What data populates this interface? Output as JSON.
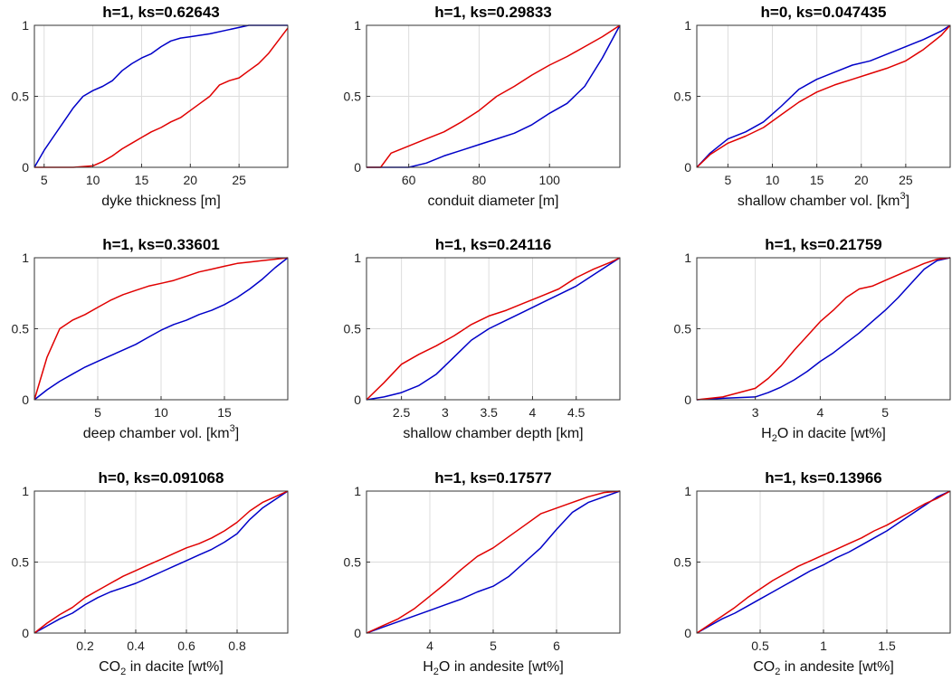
{
  "colors": {
    "series_a": "#0000c8",
    "series_b": "#e00000",
    "grid": "#dcdcdc"
  },
  "chart_data": [
    {
      "type": "line",
      "title": "h=1, ks=0.62643",
      "xlabel": {
        "pre": "dyke thickness [m]",
        "script": "",
        "script_type": "",
        "post": ""
      },
      "xlim": [
        4,
        30
      ],
      "ylim": [
        0,
        1
      ],
      "xticks": [
        5,
        10,
        15,
        20,
        25
      ],
      "xtick_labels": [
        "5",
        "10",
        "15",
        "20",
        "25"
      ],
      "yticks": [
        0,
        0.5,
        1
      ],
      "ytick_labels": [
        "0",
        "0.5",
        "1"
      ],
      "series": [
        {
          "name": "blue",
          "x": [
            4,
            5,
            6,
            7,
            8,
            9,
            10,
            11,
            12,
            13,
            14,
            15,
            16,
            17,
            18,
            19,
            20,
            22,
            24,
            26,
            28,
            30
          ],
          "y": [
            0.0,
            0.12,
            0.22,
            0.32,
            0.42,
            0.5,
            0.54,
            0.57,
            0.61,
            0.68,
            0.73,
            0.77,
            0.8,
            0.85,
            0.89,
            0.91,
            0.92,
            0.94,
            0.97,
            1.0,
            1.0,
            1.0
          ]
        },
        {
          "name": "red",
          "x": [
            4,
            6.5,
            8,
            10,
            11,
            12,
            13,
            14,
            15,
            16,
            17,
            18,
            19,
            20,
            21,
            22,
            23,
            24,
            25,
            26,
            27,
            28,
            29,
            30
          ],
          "y": [
            0.0,
            0.0,
            0.0,
            0.01,
            0.04,
            0.08,
            0.13,
            0.17,
            0.21,
            0.25,
            0.28,
            0.32,
            0.35,
            0.4,
            0.45,
            0.5,
            0.58,
            0.61,
            0.63,
            0.68,
            0.73,
            0.8,
            0.89,
            0.98
          ]
        }
      ]
    },
    {
      "type": "line",
      "title": "h=1, ks=0.29833",
      "xlabel": {
        "pre": "conduit diameter [m]",
        "script": "",
        "script_type": "",
        "post": ""
      },
      "xlim": [
        48,
        120
      ],
      "ylim": [
        0,
        1
      ],
      "xticks": [
        60,
        80,
        100
      ],
      "xtick_labels": [
        "60",
        "80",
        "100"
      ],
      "yticks": [
        0,
        0.5,
        1
      ],
      "ytick_labels": [
        "0",
        "0.5",
        "1"
      ],
      "series": [
        {
          "name": "blue",
          "x": [
            48,
            60,
            65,
            70,
            75,
            80,
            85,
            90,
            95,
            100,
            105,
            110,
            115,
            120
          ],
          "y": [
            0.0,
            0.0,
            0.03,
            0.08,
            0.12,
            0.16,
            0.2,
            0.24,
            0.3,
            0.38,
            0.45,
            0.57,
            0.77,
            1.0
          ]
        },
        {
          "name": "red",
          "x": [
            48,
            52,
            55,
            60,
            65,
            70,
            75,
            80,
            85,
            90,
            95,
            100,
            105,
            110,
            115,
            120
          ],
          "y": [
            0.0,
            0.0,
            0.1,
            0.15,
            0.2,
            0.25,
            0.32,
            0.4,
            0.5,
            0.57,
            0.65,
            0.72,
            0.78,
            0.85,
            0.92,
            1.0
          ]
        }
      ]
    },
    {
      "type": "line",
      "title": "h=0, ks=0.047435",
      "xlabel": {
        "pre": "shallow chamber vol. [km",
        "script": "3",
        "script_type": "sup",
        "post": "]"
      },
      "xlim": [
        1.5,
        30
      ],
      "ylim": [
        0,
        1
      ],
      "xticks": [
        5,
        10,
        15,
        20,
        25
      ],
      "xtick_labels": [
        "5",
        "10",
        "15",
        "20",
        "25"
      ],
      "yticks": [
        0,
        0.5,
        1
      ],
      "ytick_labels": [
        "0",
        "0.5",
        "1"
      ],
      "series": [
        {
          "name": "blue",
          "x": [
            1.5,
            3,
            5,
            7,
            9,
            11,
            13,
            15,
            17,
            19,
            21,
            23,
            25,
            27,
            29,
            30
          ],
          "y": [
            0.0,
            0.1,
            0.2,
            0.25,
            0.32,
            0.43,
            0.55,
            0.62,
            0.67,
            0.72,
            0.75,
            0.8,
            0.85,
            0.9,
            0.96,
            1.0
          ]
        },
        {
          "name": "red",
          "x": [
            1.5,
            3,
            5,
            7,
            9,
            11,
            13,
            15,
            17,
            19,
            21,
            23,
            25,
            27,
            29,
            30
          ],
          "y": [
            0.0,
            0.09,
            0.17,
            0.22,
            0.28,
            0.37,
            0.46,
            0.53,
            0.58,
            0.62,
            0.66,
            0.7,
            0.75,
            0.83,
            0.93,
            1.0
          ]
        }
      ]
    },
    {
      "type": "line",
      "title": "h=1, ks=0.33601",
      "xlabel": {
        "pre": "deep chamber vol. [km",
        "script": "3",
        "script_type": "sup",
        "post": "]"
      },
      "xlim": [
        0,
        20
      ],
      "ylim": [
        0,
        1
      ],
      "xticks": [
        5,
        10,
        15
      ],
      "xtick_labels": [
        "5",
        "10",
        "15"
      ],
      "yticks": [
        0,
        0.5,
        1
      ],
      "ytick_labels": [
        "0",
        "0.5",
        "1"
      ],
      "series": [
        {
          "name": "blue",
          "x": [
            0,
            1,
            2,
            3,
            4,
            5,
            6,
            7,
            8,
            9,
            10,
            11,
            12,
            13,
            14,
            15,
            16,
            17,
            18,
            19,
            20
          ],
          "y": [
            0.0,
            0.07,
            0.13,
            0.18,
            0.23,
            0.27,
            0.31,
            0.35,
            0.39,
            0.44,
            0.49,
            0.53,
            0.56,
            0.6,
            0.63,
            0.67,
            0.72,
            0.78,
            0.85,
            0.93,
            1.0
          ]
        },
        {
          "name": "red",
          "x": [
            0,
            0.5,
            1,
            1.5,
            2,
            3,
            4,
            5,
            6,
            7,
            8,
            9,
            10,
            11,
            12,
            13,
            14,
            15,
            16,
            17,
            18,
            19,
            20
          ],
          "y": [
            0.0,
            0.15,
            0.3,
            0.4,
            0.5,
            0.56,
            0.6,
            0.65,
            0.7,
            0.74,
            0.77,
            0.8,
            0.82,
            0.84,
            0.87,
            0.9,
            0.92,
            0.94,
            0.96,
            0.97,
            0.98,
            0.99,
            1.0
          ]
        }
      ]
    },
    {
      "type": "line",
      "title": "h=1, ks=0.24116",
      "xlabel": {
        "pre": "shallow chamber depth [km]",
        "script": "",
        "script_type": "",
        "post": ""
      },
      "xlim": [
        2.1,
        5.0
      ],
      "ylim": [
        0,
        1
      ],
      "xticks": [
        2.5,
        3,
        3.5,
        4,
        4.5
      ],
      "xtick_labels": [
        "2.5",
        "3",
        "3.5",
        "4",
        "4.5"
      ],
      "yticks": [
        0,
        0.5,
        1
      ],
      "ytick_labels": [
        "0",
        "0.5",
        "1"
      ],
      "series": [
        {
          "name": "blue",
          "x": [
            2.1,
            2.3,
            2.5,
            2.7,
            2.9,
            3.1,
            3.3,
            3.5,
            3.7,
            3.9,
            4.1,
            4.3,
            4.5,
            4.7,
            4.9,
            5.0
          ],
          "y": [
            0.0,
            0.02,
            0.05,
            0.1,
            0.18,
            0.3,
            0.42,
            0.5,
            0.56,
            0.62,
            0.68,
            0.74,
            0.8,
            0.88,
            0.96,
            1.0
          ]
        },
        {
          "name": "red",
          "x": [
            2.1,
            2.3,
            2.5,
            2.7,
            2.9,
            3.1,
            3.3,
            3.5,
            3.7,
            3.9,
            4.1,
            4.3,
            4.5,
            4.7,
            4.9,
            5.0
          ],
          "y": [
            0.0,
            0.12,
            0.25,
            0.32,
            0.38,
            0.45,
            0.53,
            0.59,
            0.63,
            0.68,
            0.73,
            0.78,
            0.86,
            0.92,
            0.97,
            1.0
          ]
        }
      ]
    },
    {
      "type": "line",
      "title": "h=1, ks=0.21759",
      "xlabel": {
        "pre": "H",
        "script": "2",
        "script_type": "sub",
        "post": "O in dacite [wt%]"
      },
      "xlim": [
        2.1,
        6.0
      ],
      "ylim": [
        0,
        1
      ],
      "xticks": [
        3,
        4,
        5
      ],
      "xtick_labels": [
        "3",
        "4",
        "5"
      ],
      "yticks": [
        0,
        0.5,
        1
      ],
      "ytick_labels": [
        "0",
        "0.5",
        "1"
      ],
      "series": [
        {
          "name": "blue",
          "x": [
            2.1,
            2.5,
            3.0,
            3.2,
            3.4,
            3.6,
            3.8,
            4.0,
            4.2,
            4.4,
            4.6,
            4.8,
            5.0,
            5.2,
            5.4,
            5.6,
            5.8,
            6.0
          ],
          "y": [
            0.0,
            0.01,
            0.02,
            0.05,
            0.09,
            0.14,
            0.2,
            0.27,
            0.33,
            0.4,
            0.47,
            0.55,
            0.63,
            0.72,
            0.82,
            0.92,
            0.98,
            1.0
          ]
        },
        {
          "name": "red",
          "x": [
            2.1,
            2.5,
            3.0,
            3.2,
            3.4,
            3.6,
            3.8,
            4.0,
            4.2,
            4.4,
            4.6,
            4.8,
            5.0,
            5.2,
            5.4,
            5.6,
            5.8,
            6.0
          ],
          "y": [
            0.0,
            0.02,
            0.08,
            0.15,
            0.24,
            0.35,
            0.45,
            0.55,
            0.63,
            0.72,
            0.78,
            0.8,
            0.84,
            0.88,
            0.92,
            0.96,
            0.99,
            1.0
          ]
        }
      ]
    },
    {
      "type": "line",
      "title": "h=0, ks=0.091068",
      "xlabel": {
        "pre": "CO",
        "script": "2",
        "script_type": "sub",
        "post": " in dacite [wt%]"
      },
      "xlim": [
        0,
        1.0
      ],
      "ylim": [
        0,
        1
      ],
      "xticks": [
        0.2,
        0.4,
        0.6,
        0.8
      ],
      "xtick_labels": [
        "0.2",
        "0.4",
        "0.6",
        "0.8"
      ],
      "yticks": [
        0,
        0.5,
        1
      ],
      "ytick_labels": [
        "0",
        "0.5",
        "1"
      ],
      "series": [
        {
          "name": "blue",
          "x": [
            0,
            0.05,
            0.1,
            0.15,
            0.2,
            0.25,
            0.3,
            0.35,
            0.4,
            0.45,
            0.5,
            0.55,
            0.6,
            0.65,
            0.7,
            0.75,
            0.8,
            0.85,
            0.9,
            0.95,
            1.0
          ],
          "y": [
            0.0,
            0.05,
            0.1,
            0.14,
            0.2,
            0.25,
            0.29,
            0.32,
            0.35,
            0.39,
            0.43,
            0.47,
            0.51,
            0.55,
            0.59,
            0.64,
            0.7,
            0.8,
            0.88,
            0.94,
            1.0
          ]
        },
        {
          "name": "red",
          "x": [
            0,
            0.05,
            0.1,
            0.15,
            0.2,
            0.25,
            0.3,
            0.35,
            0.4,
            0.45,
            0.5,
            0.55,
            0.6,
            0.65,
            0.7,
            0.75,
            0.8,
            0.85,
            0.9,
            0.95,
            1.0
          ],
          "y": [
            0.0,
            0.07,
            0.13,
            0.18,
            0.25,
            0.3,
            0.35,
            0.4,
            0.44,
            0.48,
            0.52,
            0.56,
            0.6,
            0.63,
            0.67,
            0.72,
            0.78,
            0.86,
            0.92,
            0.96,
            1.0
          ]
        }
      ]
    },
    {
      "type": "line",
      "title": "h=1, ks=0.17577",
      "xlabel": {
        "pre": "H",
        "script": "2",
        "script_type": "sub",
        "post": "O in andesite [wt%]"
      },
      "xlim": [
        3.0,
        7.0
      ],
      "ylim": [
        0,
        1
      ],
      "xticks": [
        4,
        5,
        6
      ],
      "xtick_labels": [
        "4",
        "5",
        "6"
      ],
      "yticks": [
        0,
        0.5,
        1
      ],
      "ytick_labels": [
        "0",
        "0.5",
        "1"
      ],
      "series": [
        {
          "name": "blue",
          "x": [
            3.0,
            3.25,
            3.5,
            3.75,
            4.0,
            4.25,
            4.5,
            4.75,
            5.0,
            5.25,
            5.5,
            5.75,
            6.0,
            6.25,
            6.5,
            6.75,
            7.0
          ],
          "y": [
            0.0,
            0.04,
            0.08,
            0.12,
            0.16,
            0.2,
            0.24,
            0.29,
            0.33,
            0.4,
            0.5,
            0.6,
            0.73,
            0.85,
            0.92,
            0.96,
            1.0
          ]
        },
        {
          "name": "red",
          "x": [
            3.0,
            3.25,
            3.5,
            3.75,
            4.0,
            4.25,
            4.5,
            4.75,
            5.0,
            5.25,
            5.5,
            5.75,
            6.0,
            6.25,
            6.5,
            6.75,
            7.0
          ],
          "y": [
            0.0,
            0.05,
            0.1,
            0.17,
            0.26,
            0.35,
            0.45,
            0.54,
            0.6,
            0.68,
            0.76,
            0.84,
            0.88,
            0.92,
            0.96,
            0.99,
            1.0
          ]
        }
      ]
    },
    {
      "type": "line",
      "title": "h=1, ks=0.13966",
      "xlabel": {
        "pre": "CO",
        "script": "2",
        "script_type": "sub",
        "post": " in andesite [wt%]"
      },
      "xlim": [
        0,
        2.0
      ],
      "ylim": [
        0,
        1
      ],
      "xticks": [
        0.5,
        1,
        1.5
      ],
      "xtick_labels": [
        "0.5",
        "1",
        "1.5"
      ],
      "yticks": [
        0,
        0.5,
        1
      ],
      "ytick_labels": [
        "0",
        "0.5",
        "1"
      ],
      "series": [
        {
          "name": "blue",
          "x": [
            0,
            0.1,
            0.2,
            0.3,
            0.4,
            0.5,
            0.6,
            0.7,
            0.8,
            0.9,
            1.0,
            1.1,
            1.2,
            1.3,
            1.4,
            1.5,
            1.6,
            1.7,
            1.8,
            1.9,
            2.0
          ],
          "y": [
            0.0,
            0.05,
            0.1,
            0.14,
            0.19,
            0.24,
            0.29,
            0.34,
            0.39,
            0.44,
            0.48,
            0.53,
            0.57,
            0.62,
            0.67,
            0.72,
            0.78,
            0.84,
            0.9,
            0.96,
            1.0
          ]
        },
        {
          "name": "red",
          "x": [
            0,
            0.1,
            0.2,
            0.3,
            0.4,
            0.5,
            0.6,
            0.7,
            0.8,
            0.9,
            1.0,
            1.1,
            1.2,
            1.3,
            1.4,
            1.5,
            1.6,
            1.7,
            1.8,
            1.9,
            2.0
          ],
          "y": [
            0.0,
            0.06,
            0.12,
            0.18,
            0.25,
            0.31,
            0.37,
            0.42,
            0.47,
            0.51,
            0.55,
            0.59,
            0.63,
            0.67,
            0.72,
            0.76,
            0.81,
            0.86,
            0.91,
            0.95,
            1.0
          ]
        }
      ]
    }
  ]
}
